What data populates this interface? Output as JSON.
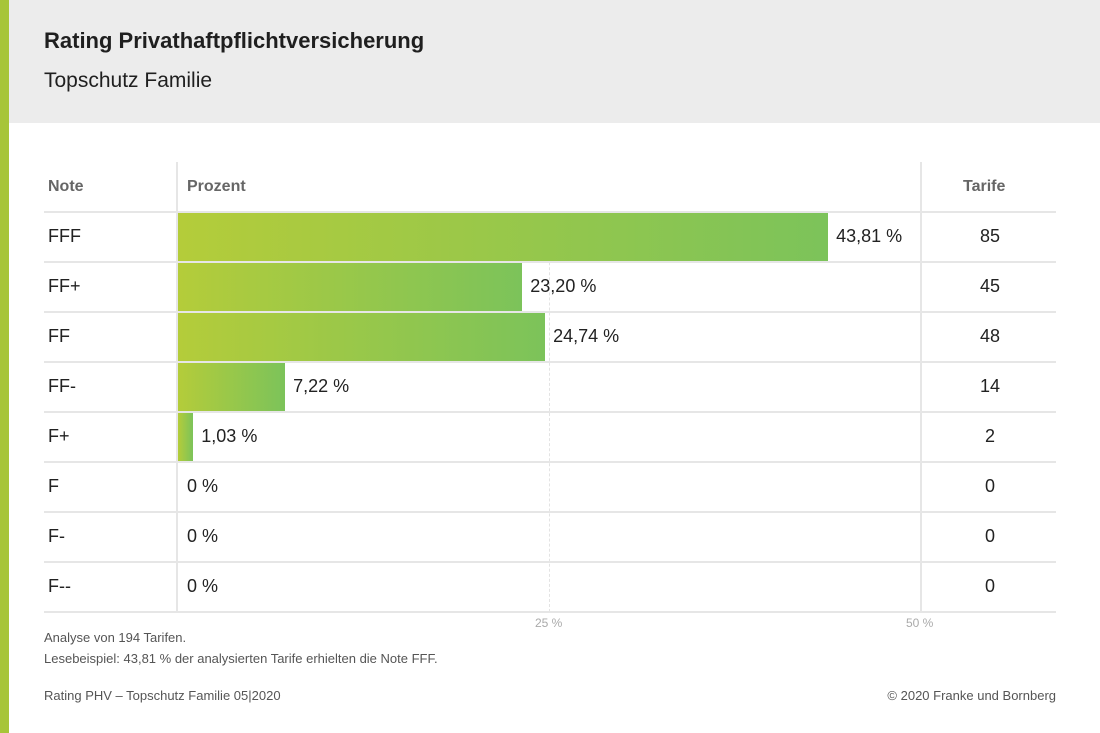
{
  "header": {
    "title": "Rating Privathaftpflichtversicherung",
    "subtitle": "Topschutz Familie"
  },
  "columns": {
    "note": "Note",
    "prozent": "Prozent",
    "tarife": "Tarife"
  },
  "chart_data": {
    "type": "bar",
    "orientation": "horizontal",
    "categories": [
      "FFF",
      "FF+",
      "FF",
      "FF-",
      "F+",
      "F",
      "F-",
      "F--"
    ],
    "values": [
      43.81,
      23.2,
      24.74,
      7.22,
      1.03,
      0,
      0,
      0
    ],
    "value_labels": [
      "43,81 %",
      "23,20 %",
      "24,74 %",
      "7,22 %",
      "1,03 %",
      "0 %",
      "0 %",
      "0 %"
    ],
    "tarife": [
      "85",
      "45",
      "48",
      "14",
      "2",
      "0",
      "0",
      "0"
    ],
    "xlim": [
      0,
      50
    ],
    "x_ticks": [
      25,
      50
    ],
    "x_tick_labels": [
      "25 %",
      "50 %"
    ],
    "grid": true,
    "colors": {
      "bar_start": "#b4cc3a",
      "bar_end": "#7cc35a",
      "accent": "#a7c538"
    }
  },
  "footer": {
    "note1": "Analyse von 194 Tarifen.",
    "note2": "Lesebeispiel: 43,81 % der analysierten Tarife erhielten die Note FFF.",
    "left": "Rating PHV – Topschutz Familie 05|2020",
    "right": "© 2020 Franke und Bornberg"
  }
}
